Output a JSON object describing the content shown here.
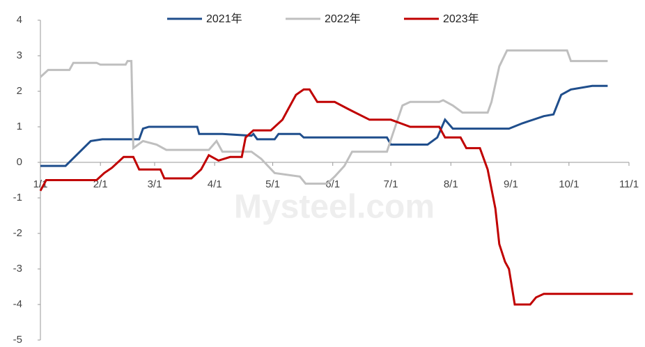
{
  "chart_data": {
    "type": "line",
    "watermark": "Mysteel.com",
    "xlim": [
      0,
      304
    ],
    "xticks": [
      {
        "value": 0,
        "label": "1/1"
      },
      {
        "value": 31,
        "label": "2/1"
      },
      {
        "value": 59,
        "label": "3/1"
      },
      {
        "value": 90,
        "label": "4/1"
      },
      {
        "value": 120,
        "label": "5/1"
      },
      {
        "value": 151,
        "label": "6/1"
      },
      {
        "value": 181,
        "label": "7/1"
      },
      {
        "value": 212,
        "label": "8/1"
      },
      {
        "value": 243,
        "label": "9/1"
      },
      {
        "value": 273,
        "label": "10/1"
      },
      {
        "value": 304,
        "label": "11/1"
      }
    ],
    "ylim": [
      -5,
      4
    ],
    "yticks": [
      -5,
      -4,
      -3,
      -2,
      -1,
      0,
      1,
      2,
      3,
      4
    ],
    "legend": "top",
    "series": [
      {
        "name": "2021年",
        "color": "#1f4e8c",
        "x": [
          0,
          13,
          26,
          32,
          47,
          51,
          53,
          56,
          81,
          82,
          94,
          109,
          110,
          112,
          121,
          123,
          134,
          136,
          179,
          181,
          200,
          205,
          209,
          213,
          242,
          249,
          260,
          265,
          269,
          274,
          285,
          293
        ],
        "values": [
          -0.1,
          -0.1,
          0.6,
          0.65,
          0.65,
          0.65,
          0.95,
          1.0,
          1.0,
          0.8,
          0.8,
          0.75,
          0.8,
          0.65,
          0.65,
          0.8,
          0.8,
          0.7,
          0.7,
          0.5,
          0.5,
          0.7,
          1.2,
          0.95,
          0.95,
          1.1,
          1.3,
          1.35,
          1.9,
          2.05,
          2.15,
          2.15
        ]
      },
      {
        "name": "2022年",
        "color": "#bfbfbf",
        "x": [
          0,
          4,
          15,
          17,
          29,
          31,
          44,
          45,
          47,
          48,
          53,
          60,
          65,
          87,
          91,
          94,
          109,
          114,
          121,
          134,
          137,
          148,
          152,
          157,
          161,
          179,
          182,
          187,
          191,
          206,
          208,
          213,
          218,
          231,
          233,
          237,
          241,
          272,
          274,
          293
        ],
        "values": [
          2.4,
          2.6,
          2.6,
          2.8,
          2.8,
          2.75,
          2.75,
          2.85,
          2.85,
          0.4,
          0.6,
          0.5,
          0.35,
          0.35,
          0.6,
          0.3,
          0.3,
          0.1,
          -0.3,
          -0.4,
          -0.6,
          -0.6,
          -0.4,
          -0.1,
          0.3,
          0.3,
          0.8,
          1.6,
          1.7,
          1.7,
          1.75,
          1.6,
          1.4,
          1.4,
          1.7,
          2.7,
          3.15,
          3.15,
          2.85,
          2.85
        ]
      },
      {
        "name": "2023年",
        "color": "#c00000",
        "x": [
          0,
          3,
          29,
          33,
          37,
          43,
          48,
          51,
          62,
          64,
          78,
          83,
          87,
          92,
          98,
          104,
          106,
          110,
          119,
          125,
          128,
          132,
          136,
          139,
          143,
          152,
          159,
          170,
          181,
          186,
          191,
          206,
          209,
          217,
          220,
          227,
          231,
          235,
          237,
          240,
          242,
          245,
          253,
          256,
          260,
          306
        ],
        "values": [
          -0.8,
          -0.5,
          -0.5,
          -0.3,
          -0.15,
          0.15,
          0.15,
          -0.2,
          -0.2,
          -0.45,
          -0.45,
          -0.2,
          0.2,
          0.05,
          0.15,
          0.15,
          0.7,
          0.9,
          0.9,
          1.2,
          1.5,
          1.9,
          2.05,
          2.05,
          1.7,
          1.7,
          1.5,
          1.2,
          1.2,
          1.1,
          1.0,
          1.0,
          0.7,
          0.7,
          0.4,
          0.4,
          -0.2,
          -1.3,
          -2.3,
          -2.8,
          -3.0,
          -4.0,
          -4.0,
          -3.8,
          -3.7,
          -3.7
        ]
      }
    ]
  }
}
